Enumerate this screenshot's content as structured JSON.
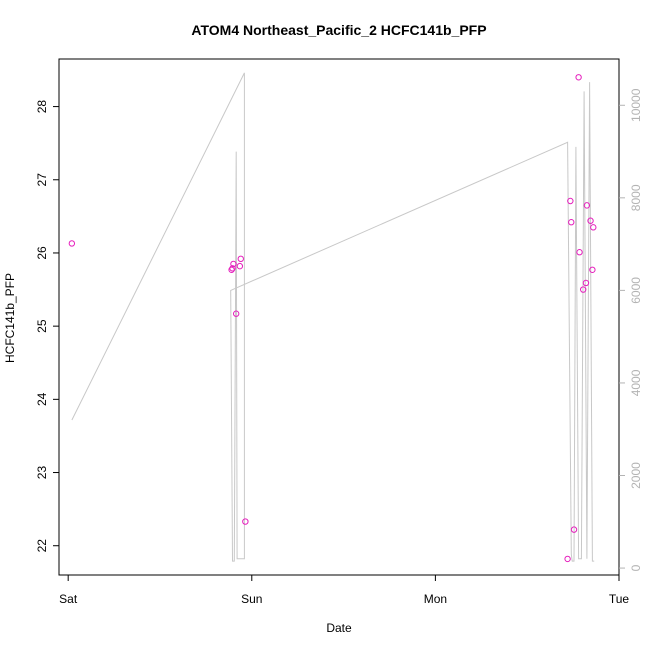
{
  "chart_data": {
    "type": "scatter",
    "title": "ATOM4 Northeast_Pacific_2 HCFC141b_PFP",
    "xlabel": "Date",
    "ylabel": "HCFC141b_PFP",
    "x_ticks": [
      "Sat",
      "Sun",
      "Mon",
      "Tue"
    ],
    "y_ticks": [
      "22",
      "23",
      "24",
      "25",
      "26",
      "27",
      "28"
    ],
    "y2_ticks": [
      "0",
      "2000",
      "4000",
      "6000",
      "8000",
      "10000"
    ],
    "xlim_days": [
      -0.05,
      3.0
    ],
    "ylim": [
      21.6,
      28.65
    ],
    "y2lim": [
      -150,
      11000
    ],
    "colors": {
      "points": "#e61ebd",
      "line": "#c8c8c8",
      "right_axis": "#b3b3b3",
      "axis": "#000000"
    },
    "points": [
      {
        "x": 0.02,
        "y": 26.13
      },
      {
        "x": 0.89,
        "y": 25.77
      },
      {
        "x": 0.895,
        "y": 25.79
      },
      {
        "x": 0.9,
        "y": 25.85
      },
      {
        "x": 0.915,
        "y": 25.17
      },
      {
        "x": 0.935,
        "y": 25.82
      },
      {
        "x": 0.94,
        "y": 25.92
      },
      {
        "x": 0.965,
        "y": 22.33
      },
      {
        "x": 2.72,
        "y": 21.82
      },
      {
        "x": 2.735,
        "y": 26.71
      },
      {
        "x": 2.74,
        "y": 26.42
      },
      {
        "x": 2.755,
        "y": 22.22
      },
      {
        "x": 2.78,
        "y": 28.4
      },
      {
        "x": 2.785,
        "y": 26.01
      },
      {
        "x": 2.805,
        "y": 25.5
      },
      {
        "x": 2.82,
        "y": 25.59
      },
      {
        "x": 2.825,
        "y": 26.65
      },
      {
        "x": 2.845,
        "y": 26.44
      },
      {
        "x": 2.855,
        "y": 25.77
      },
      {
        "x": 2.86,
        "y": 26.35
      }
    ],
    "line_series": {
      "name": "",
      "axis": "right",
      "x": [
        0.02,
        0.96,
        0.96,
        0.92,
        0.915,
        0.905,
        0.895,
        0.885,
        2.72,
        2.74,
        2.745,
        2.755,
        2.765,
        2.78,
        2.795,
        2.81,
        2.825,
        2.84,
        2.855,
        2.865
      ],
      "y": [
        3200,
        10700,
        200,
        200,
        9000,
        150,
        150,
        6000,
        9200,
        300,
        150,
        150,
        9100,
        200,
        200,
        10300,
        200,
        10500,
        150,
        150
      ]
    }
  }
}
